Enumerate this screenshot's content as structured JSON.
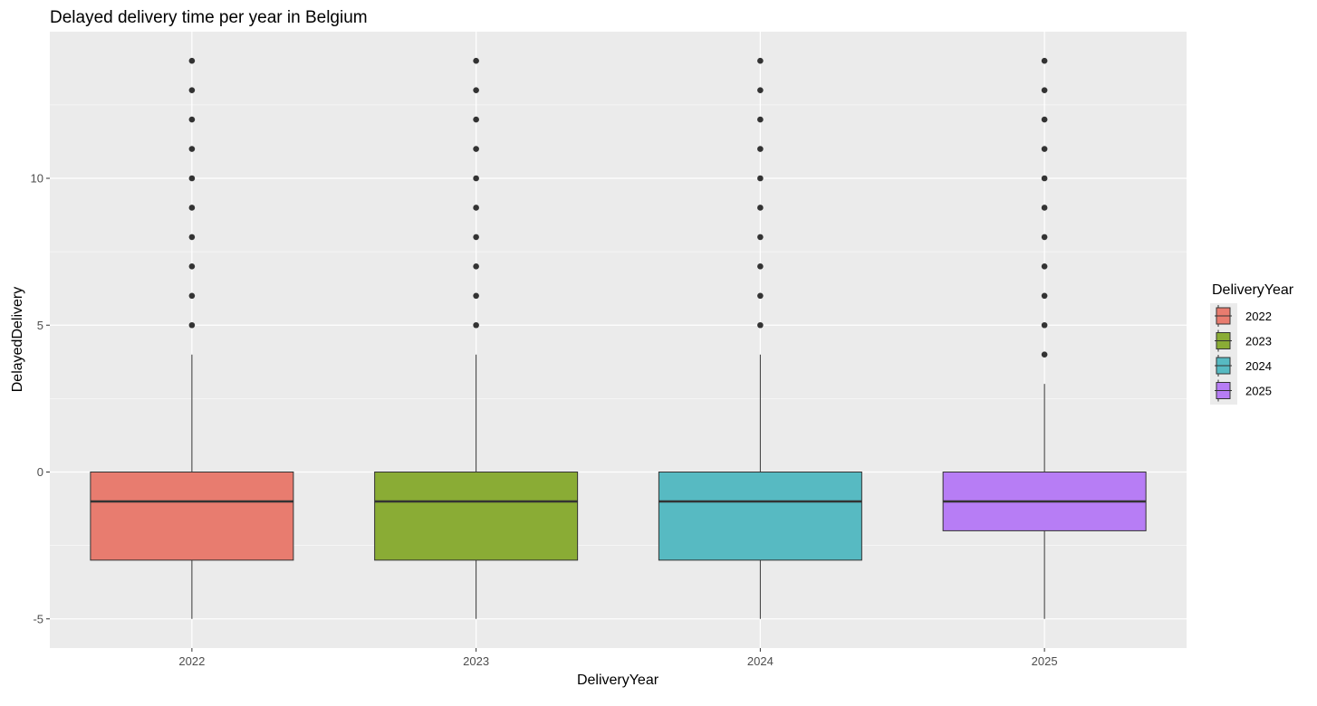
{
  "chart_data": {
    "type": "boxplot",
    "title": "Delayed delivery time per year in Belgium",
    "xlabel": "DeliveryYear",
    "ylabel": "DelayedDelivery",
    "ylim": [
      -6,
      15
    ],
    "y_ticks": [
      -5,
      0,
      5,
      10
    ],
    "grid": true,
    "legend": {
      "title": "DeliveryYear",
      "position": "right"
    },
    "categories": [
      "2022",
      "2023",
      "2024",
      "2025"
    ],
    "series": [
      {
        "name": "2022",
        "color": "#E87C6F",
        "whisker_low": -5,
        "q1": -3,
        "median": -1,
        "q3": 0,
        "whisker_high": 4,
        "outliers": [
          5,
          6,
          7,
          8,
          9,
          10,
          11,
          12,
          13,
          14
        ]
      },
      {
        "name": "2023",
        "color": "#8AAC35",
        "whisker_low": -5,
        "q1": -3,
        "median": -1,
        "q3": 0,
        "whisker_high": 4,
        "outliers": [
          5,
          6,
          7,
          8,
          9,
          10,
          11,
          12,
          13,
          14
        ]
      },
      {
        "name": "2024",
        "color": "#57BAC2",
        "whisker_low": -5,
        "q1": -3,
        "median": -1,
        "q3": 0,
        "whisker_high": 4,
        "outliers": [
          5,
          6,
          7,
          8,
          9,
          10,
          11,
          12,
          13,
          14
        ]
      },
      {
        "name": "2025",
        "color": "#B77DF5",
        "whisker_low": -5,
        "q1": -2,
        "median": -1,
        "q3": 0,
        "whisker_high": 3,
        "outliers": [
          4,
          5,
          6,
          7,
          8,
          9,
          10,
          11,
          12,
          13,
          14
        ]
      }
    ]
  }
}
